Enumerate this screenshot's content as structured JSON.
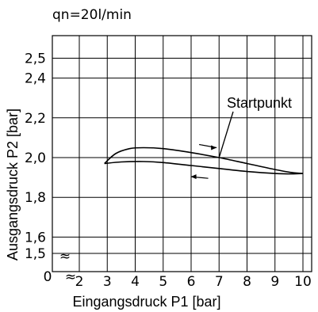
{
  "chart_data": {
    "type": "line",
    "condition_label": "qn=20l/min",
    "xlabel": "Eingangsdruck P1 [bar]",
    "ylabel": "Ausgangsdruck P2 [bar]",
    "x_ticks": [
      2,
      3,
      4,
      5,
      6,
      7,
      8,
      9,
      10
    ],
    "x_tick_labels": [
      "2",
      "3",
      "4",
      "5",
      "6",
      "7",
      "8",
      "9",
      "10"
    ],
    "y_ticks": [
      1.5,
      1.6,
      1.8,
      2.0,
      2.2,
      2.4,
      2.5
    ],
    "y_tick_labels": [
      "1,5",
      "1,6",
      "1,8",
      "2,0",
      "2,2",
      "2,4",
      "2,5"
    ],
    "origin_label": "0",
    "break_symbol": "≈",
    "grid": true,
    "annotation": {
      "text": "Startpunkt",
      "x": 7.0,
      "y": 2.0
    },
    "series": [
      {
        "x": [
          2.9,
          3.3,
          3.8,
          4.3,
          5.0,
          6.0,
          7.0,
          8.0,
          9.0,
          9.6,
          10.0
        ],
        "y": [
          1.97,
          2.02,
          2.045,
          2.05,
          2.045,
          2.025,
          2.0,
          1.97,
          1.94,
          1.925,
          1.92
        ]
      },
      {
        "x": [
          2.9,
          3.5,
          4.3,
          5.0,
          6.0,
          7.0,
          8.0,
          9.0,
          9.6,
          10.0
        ],
        "y": [
          1.97,
          1.978,
          1.98,
          1.975,
          1.96,
          1.945,
          1.93,
          1.92,
          1.918,
          1.92
        ]
      }
    ],
    "direction_arrows": [
      {
        "series": 0,
        "x": 6.6,
        "dir": "right"
      },
      {
        "series": 1,
        "x": 6.3,
        "dir": "left"
      }
    ]
  }
}
